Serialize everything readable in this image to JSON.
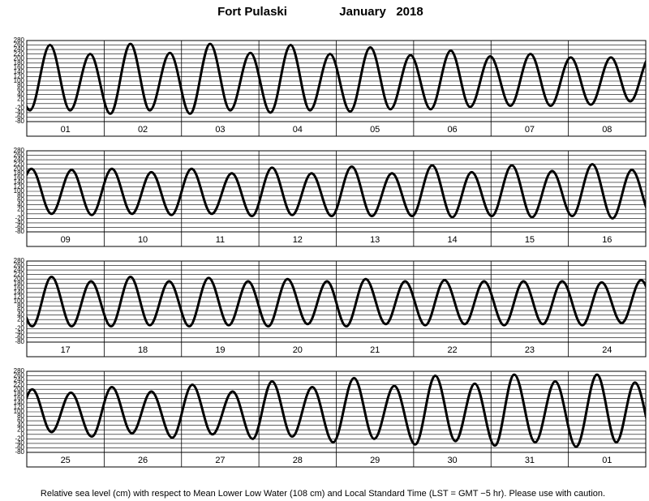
{
  "title": "Fort Pulaski",
  "period": "January   2018",
  "footnote": "Relative sea level (cm) with respect to Mean Lower Low Water (108 cm) and Local Standard Time (LST = GMT −5 hr). Please use with caution.",
  "chart_data": [
    {
      "type": "line",
      "color": "#000000",
      "grid": true,
      "xlim": [
        0,
        8
      ],
      "ylim": [
        -80,
        280
      ],
      "yticks": [
        -80,
        -60,
        -40,
        -20,
        0,
        20,
        40,
        60,
        80,
        100,
        120,
        140,
        160,
        180,
        200,
        220,
        240,
        260,
        280
      ],
      "categories": [
        "01",
        "02",
        "03",
        "04",
        "05",
        "06",
        "07",
        "08"
      ],
      "x": [
        -0.22,
        0.04,
        0.3,
        0.56,
        0.82,
        1.08,
        1.34,
        1.59,
        1.85,
        2.11,
        2.37,
        2.63,
        2.89,
        3.15,
        3.41,
        3.66,
        3.92,
        4.18,
        4.44,
        4.7,
        4.96,
        5.22,
        5.48,
        5.73,
        5.99,
        6.25,
        6.51,
        6.77,
        7.03,
        7.29,
        7.55,
        7.8,
        8.06
      ],
      "values": [
        220,
        -30,
        260,
        -30,
        220,
        -45,
        265,
        -30,
        225,
        -45,
        265,
        -30,
        225,
        -40,
        260,
        -30,
        220,
        -35,
        250,
        -25,
        215,
        -25,
        235,
        -15,
        210,
        -10,
        220,
        -10,
        205,
        -5,
        205,
        10,
        210
      ]
    },
    {
      "type": "line",
      "color": "#000000",
      "grid": true,
      "xlim": [
        0,
        8
      ],
      "ylim": [
        -80,
        280
      ],
      "yticks": [
        -80,
        -60,
        -40,
        -20,
        0,
        20,
        40,
        60,
        80,
        100,
        120,
        140,
        160,
        180,
        200,
        220,
        240,
        260,
        280
      ],
      "categories": [
        "09",
        "10",
        "11",
        "12",
        "13",
        "14",
        "15",
        "16"
      ],
      "x": [
        -0.2,
        0.06,
        0.32,
        0.58,
        0.84,
        1.1,
        1.36,
        1.61,
        1.87,
        2.13,
        2.39,
        2.65,
        2.91,
        3.17,
        3.43,
        3.68,
        3.94,
        4.2,
        4.46,
        4.72,
        4.98,
        5.24,
        5.5,
        5.75,
        6.01,
        6.27,
        6.53,
        6.79,
        7.05,
        7.31,
        7.57,
        7.82,
        8.08
      ],
      "values": [
        10,
        200,
        0,
        195,
        -5,
        200,
        0,
        185,
        -5,
        200,
        0,
        180,
        -10,
        205,
        -5,
        180,
        -10,
        210,
        -10,
        180,
        -10,
        215,
        -15,
        185,
        -10,
        215,
        -15,
        190,
        -10,
        220,
        -20,
        195,
        -10
      ]
    },
    {
      "type": "line",
      "color": "#000000",
      "grid": true,
      "xlim": [
        0,
        8
      ],
      "ylim": [
        -80,
        280
      ],
      "yticks": [
        -80,
        -60,
        -40,
        -20,
        0,
        20,
        40,
        60,
        80,
        100,
        120,
        140,
        160,
        180,
        200,
        220,
        240,
        260,
        280
      ],
      "categories": [
        "17",
        "18",
        "19",
        "20",
        "21",
        "22",
        "23",
        "24"
      ],
      "x": [
        -0.19,
        0.07,
        0.32,
        0.58,
        0.83,
        1.09,
        1.34,
        1.59,
        1.84,
        2.1,
        2.35,
        2.61,
        2.86,
        3.12,
        3.37,
        3.63,
        3.88,
        4.13,
        4.38,
        4.64,
        4.89,
        5.15,
        5.4,
        5.66,
        5.91,
        6.17,
        6.42,
        6.67,
        6.92,
        7.18,
        7.43,
        7.69,
        7.94,
        8.2
      ],
      "values": [
        195,
        -10,
        210,
        -10,
        190,
        -10,
        210,
        -5,
        190,
        -10,
        205,
        -5,
        190,
        -10,
        200,
        0,
        190,
        -10,
        200,
        0,
        190,
        -5,
        195,
        0,
        190,
        -5,
        190,
        0,
        190,
        -5,
        185,
        5,
        195,
        0
      ]
    },
    {
      "type": "line",
      "color": "#000000",
      "grid": true,
      "xlim": [
        0,
        8
      ],
      "ylim": [
        -80,
        280
      ],
      "yticks": [
        -80,
        -60,
        -40,
        -20,
        0,
        20,
        40,
        60,
        80,
        100,
        120,
        140,
        160,
        180,
        200,
        220,
        240,
        260,
        280
      ],
      "categories": [
        "25",
        "26",
        "27",
        "28",
        "29",
        "30",
        "31",
        "01"
      ],
      "x": [
        -0.19,
        0.07,
        0.32,
        0.57,
        0.84,
        1.1,
        1.36,
        1.61,
        1.88,
        2.14,
        2.4,
        2.66,
        2.92,
        3.17,
        3.43,
        3.69,
        3.96,
        4.23,
        4.49,
        4.75,
        5.02,
        5.28,
        5.54,
        5.79,
        6.05,
        6.3,
        6.57,
        6.83,
        7.1,
        7.37,
        7.62,
        7.86,
        8.12
      ],
      "values": [
        -10,
        200,
        10,
        185,
        -10,
        210,
        5,
        190,
        -15,
        220,
        0,
        190,
        -20,
        235,
        -10,
        210,
        -35,
        250,
        -20,
        215,
        -45,
        260,
        -30,
        225,
        -50,
        265,
        -35,
        235,
        -55,
        265,
        -35,
        230,
        -30
      ]
    }
  ]
}
